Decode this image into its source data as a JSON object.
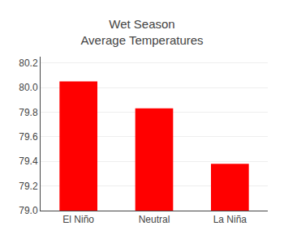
{
  "chart_data": {
    "type": "bar",
    "title": "Wet Season\nAverage Temperatures",
    "categories": [
      "El Niño",
      "Neutral",
      "La Niña"
    ],
    "values": [
      80.05,
      79.83,
      79.38
    ],
    "color": "#ff0000",
    "ylim": [
      79.0,
      80.25
    ],
    "yticks": [
      {
        "value": 79.0,
        "label": "79.0"
      },
      79.2,
      79.4,
      79.6,
      79.8,
      {
        "value": 80.0,
        "label": "80.0"
      },
      80.2
    ],
    "grid": true
  }
}
